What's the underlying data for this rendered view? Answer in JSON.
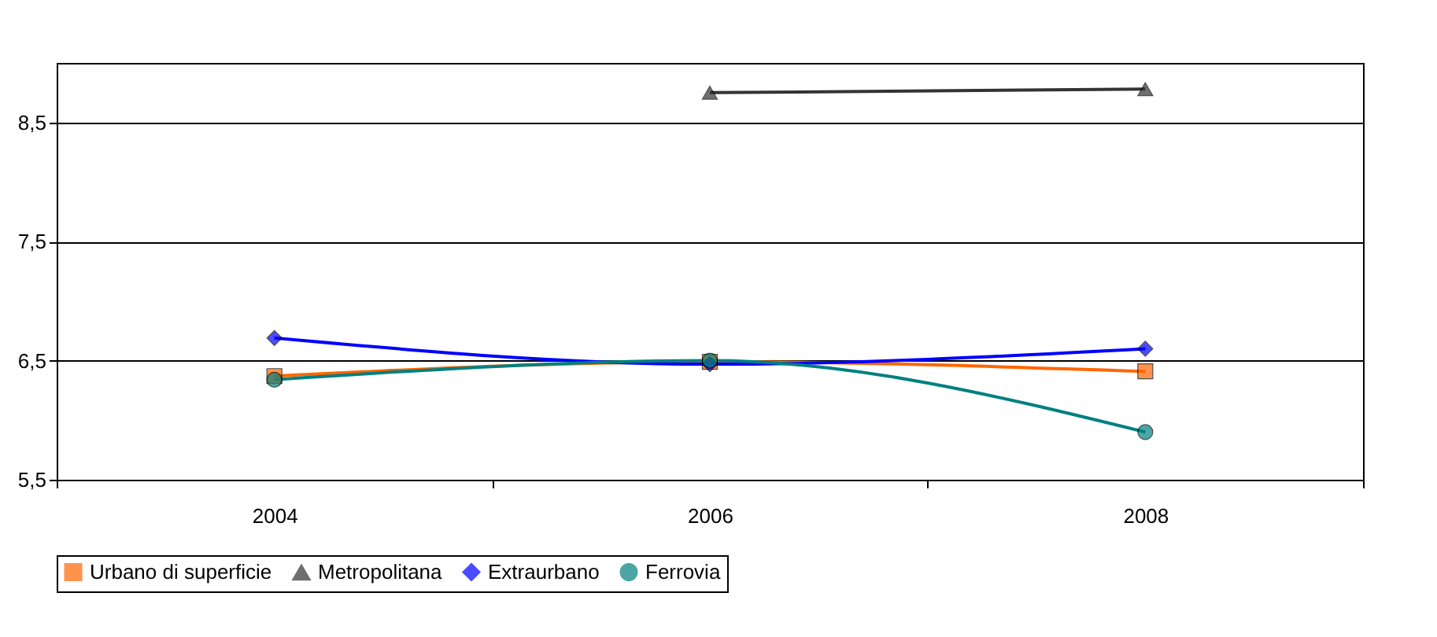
{
  "chart_data": {
    "type": "line",
    "categories": [
      "2004",
      "2006",
      "2008"
    ],
    "series": [
      {
        "name": "Urbano di superficie",
        "color": "#ff6600",
        "marker": "square",
        "values": [
          6.37,
          6.49,
          6.41
        ]
      },
      {
        "name": "Metropolitana",
        "color": "#333333",
        "marker": "triangle",
        "values": [
          null,
          8.75,
          8.78
        ]
      },
      {
        "name": "Extraurbano",
        "color": "#0000ff",
        "marker": "diamond",
        "values": [
          6.69,
          6.47,
          6.6
        ]
      },
      {
        "name": "Ferrovia",
        "color": "#008080",
        "marker": "circle",
        "values": [
          6.34,
          6.5,
          5.9
        ]
      }
    ],
    "ylim": [
      5.5,
      9
    ],
    "yticks": [
      {
        "value": 5.5,
        "label": "5,5"
      },
      {
        "value": 6.5,
        "label": "6,5"
      },
      {
        "value": 7.5,
        "label": "7,5"
      },
      {
        "value": 8.5,
        "label": "8,5"
      }
    ],
    "grid": "y",
    "legend": "bottom"
  }
}
